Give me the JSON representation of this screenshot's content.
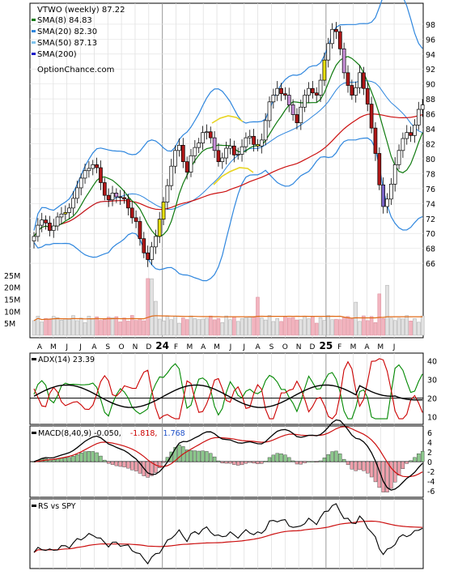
{
  "chart_data": [
    {
      "type": "candlestick",
      "title": "VTWO (weekly) 87.22",
      "watermark": "OptionChance.com",
      "legend": [
        {
          "label": "SMA(8) 84.83",
          "color": "#0f7a0f"
        },
        {
          "label": "SMA(20) 82.30",
          "color": "#2e86de"
        },
        {
          "label": "SMA(50) 87.13",
          "color": "#7fc4ee"
        },
        {
          "label": "SMA(200)",
          "color": "#1414c8"
        }
      ],
      "legend_placement": "top-left",
      "y_ticks": [
        66,
        68,
        70,
        72,
        74,
        76,
        78,
        80,
        82,
        84,
        86,
        88,
        90,
        92,
        94,
        96,
        98
      ],
      "ylim": [
        64.5,
        99.5
      ],
      "x_tick_labels": [
        "A",
        "M",
        "J",
        "J",
        "A",
        "S",
        "O",
        "N",
        "D",
        "24",
        "F",
        "M",
        "A",
        "M",
        "J",
        "J",
        "A",
        "S",
        "O",
        "N",
        "D",
        "25",
        "F",
        "M",
        "A",
        "M",
        "J"
      ],
      "close": [
        69.6,
        71.1,
        71.8,
        71.4,
        70.4,
        71.0,
        72.2,
        72.6,
        72.8,
        73.4,
        74.7,
        76.1,
        77.4,
        78.4,
        78.7,
        79.2,
        78.8,
        76.8,
        75.1,
        74.5,
        75.4,
        74.9,
        74.8,
        74.6,
        73.4,
        72.1,
        71.6,
        69.3,
        67.4,
        66.5,
        68.2,
        69.6,
        71.9,
        74.2,
        76.4,
        79.0,
        81.1,
        81.8,
        79.6,
        78.2,
        80.4,
        81.5,
        82.1,
        83.5,
        83.6,
        82.8,
        81.1,
        79.6,
        80.1,
        81.4,
        81.7,
        80.5,
        80.6,
        81.6,
        82.8,
        83.0,
        81.9,
        81.7,
        82.5,
        85.1,
        87.6,
        88.5,
        89.4,
        88.7,
        88.5,
        87.2,
        85.9,
        84.8,
        86.9,
        88.5,
        89.4,
        88.8,
        88.5,
        90.5,
        93.2,
        95.4,
        97.3,
        97.0,
        94.7,
        91.5,
        89.8,
        88.5,
        89.5,
        91.5,
        89.4,
        87.3,
        84.1,
        80.7,
        76.5,
        73.6,
        74.6,
        76.6,
        79.2,
        81.1,
        82.7,
        83.5,
        83.1,
        84.5,
        86.6,
        87.2
      ]
    },
    {
      "type": "bar",
      "title": "Volume",
      "y_ticks": [
        "5M",
        "10M",
        "15M",
        "20M",
        "25M"
      ],
      "ylim": [
        0,
        27000000
      ]
    },
    {
      "type": "line",
      "title": "ADX(14) 23.39",
      "series_colors": {
        "ADX": "#000000",
        "+DI": "#008800",
        "-DI": "#cc0000"
      },
      "y_ticks": [
        10,
        20,
        30,
        40
      ],
      "ylim": [
        6,
        44
      ],
      "reference_line": 20
    },
    {
      "type": "line",
      "title_prefix": "MACD(8,40,9) -0.050,",
      "title_macd_value": "-1.818,",
      "title_signal_value": "1.768",
      "title_colors": {
        "macd": "#cc0000",
        "signal": "#1c4fc8"
      },
      "y_ticks": [
        -6,
        -4,
        -2,
        0,
        2,
        4,
        6
      ],
      "ylim": [
        -7,
        7
      ]
    },
    {
      "type": "line",
      "title": "RS vs SPY",
      "series_colors": {
        "RS": "#000000",
        "RS SMA": "#cc0000"
      }
    }
  ]
}
